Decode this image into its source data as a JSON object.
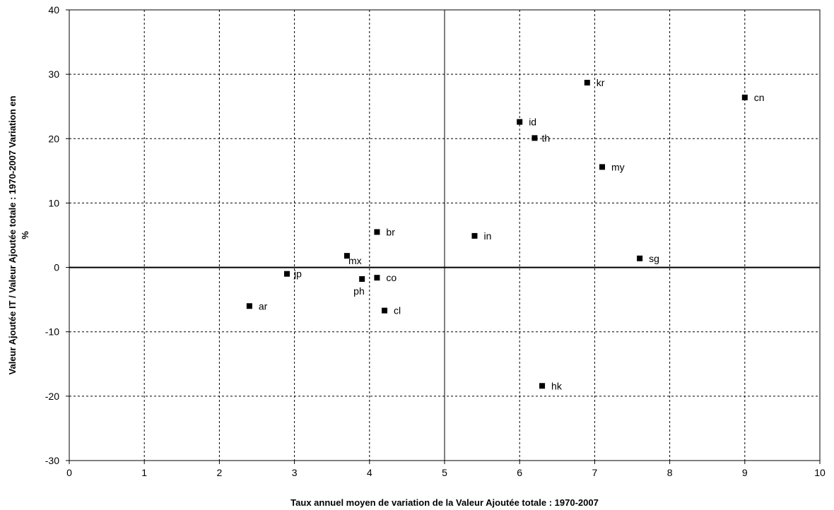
{
  "chart_data": {
    "type": "scatter",
    "title": "",
    "xlabel": "Taux annuel moyen de variation de la Valeur Ajoutée totale : 1970-2007",
    "ylabel_line1": "Valeur Ajoutée  IT / Valeur Ajoutée totale : 1970-2007 Variation en",
    "ylabel_line2": "%",
    "xlim": [
      0,
      10
    ],
    "ylim": [
      -30,
      40
    ],
    "xticks": [
      0,
      1,
      2,
      3,
      4,
      5,
      6,
      7,
      8,
      9,
      10
    ],
    "yticks": [
      -30,
      -20,
      -10,
      0,
      10,
      20,
      30,
      40
    ],
    "grid": true,
    "reference_lines": {
      "x": 5,
      "y": 0
    },
    "points": [
      {
        "label": "kr",
        "x": 6.9,
        "y": 28.7
      },
      {
        "label": "cn",
        "x": 9.0,
        "y": 26.4
      },
      {
        "label": "id",
        "x": 6.0,
        "y": 22.6
      },
      {
        "label": "th",
        "x": 6.2,
        "y": 20.1
      },
      {
        "label": "my",
        "x": 7.1,
        "y": 15.6
      },
      {
        "label": "br",
        "x": 4.1,
        "y": 5.5
      },
      {
        "label": "in",
        "x": 5.4,
        "y": 4.9
      },
      {
        "label": "mx",
        "x": 3.7,
        "y": 1.8
      },
      {
        "label": "sg",
        "x": 7.6,
        "y": 1.4
      },
      {
        "label": "jp",
        "x": 2.9,
        "y": -1.0
      },
      {
        "label": "co",
        "x": 4.1,
        "y": -1.6
      },
      {
        "label": "ph",
        "x": 3.9,
        "y": -1.8
      },
      {
        "label": "ar",
        "x": 2.4,
        "y": -6.0
      },
      {
        "label": "cl",
        "x": 4.2,
        "y": -6.7
      },
      {
        "label": "hk",
        "x": 6.3,
        "y": -18.4
      }
    ]
  }
}
